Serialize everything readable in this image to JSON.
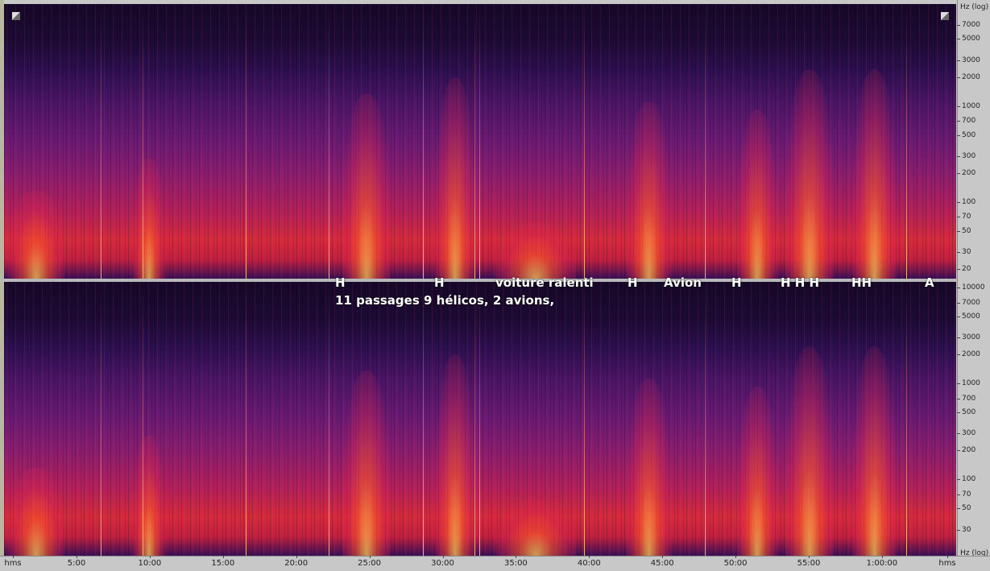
{
  "top_panel": {
    "axis_label": "Hz (log)",
    "ylim": [
      16,
      11500
    ],
    "yticks": [
      7000,
      5000,
      3000,
      2000,
      1000,
      700,
      500,
      300,
      200,
      100,
      70,
      50,
      30,
      20
    ]
  },
  "bottom_panel": {
    "axis_label": "Hz (log)",
    "ylim": [
      16,
      11500
    ],
    "yticks": [
      10000,
      7000,
      5000,
      3000,
      2000,
      1000,
      700,
      500,
      300,
      200,
      100,
      70,
      50,
      30
    ]
  },
  "time_axis": {
    "labels": [
      "hms",
      "5:00",
      "10:00",
      "15:00",
      "20:00",
      "25:00",
      "30:00",
      "35:00",
      "40:00",
      "45:00",
      "50:00",
      "55:00",
      "1:00:00",
      "hms"
    ]
  },
  "annotations": {
    "markers": [
      "H",
      "H",
      "voiture ralenti",
      "H",
      "Avion",
      "H",
      "H H H",
      "HH",
      "A"
    ],
    "summary": "11 passages 9 hélicos, 2 avions,"
  }
}
